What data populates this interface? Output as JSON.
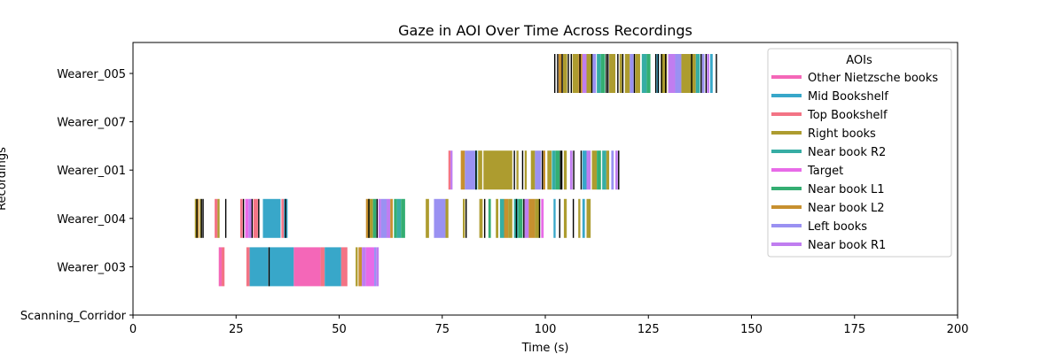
{
  "chart_data": {
    "type": "broken_barh",
    "title": "Gaze in AOI Over Time Across Recordings",
    "xlabel": "Time (s)",
    "ylabel": "Recordings",
    "xlim": [
      0,
      200
    ],
    "xticks": [
      0,
      25,
      50,
      75,
      100,
      125,
      150,
      175,
      200
    ],
    "recordings": [
      "Scanning_Corridor",
      "Wearer_003",
      "Wearer_004",
      "Wearer_001",
      "Wearer_007",
      "Wearer_005"
    ],
    "legend": {
      "title": "AOIs",
      "placement": "top-right",
      "items": [
        {
          "name": "Other Nietzsche books",
          "color": "#f467b8"
        },
        {
          "name": "Mid Bookshelf",
          "color": "#38a7c9"
        },
        {
          "name": "Top Bookshelf",
          "color": "#f37485"
        },
        {
          "name": "Right books",
          "color": "#ad9c2f"
        },
        {
          "name": "Near book R2",
          "color": "#36ada4"
        },
        {
          "name": "Target",
          "color": "#e86be8"
        },
        {
          "name": "Near book L1",
          "color": "#34ae72"
        },
        {
          "name": "Near book L2",
          "color": "#c7902f"
        },
        {
          "name": "Left books",
          "color": "#9a91f2"
        },
        {
          "name": "Near book R1",
          "color": "#c07df0"
        }
      ]
    },
    "series": [
      {
        "recording": "Wearer_003",
        "segments": [
          {
            "start": 20.8,
            "end": 21.5,
            "aoi": "Other Nietzsche books"
          },
          {
            "start": 21.5,
            "end": 22.2,
            "aoi": "Top Bookshelf"
          },
          {
            "start": 27.5,
            "end": 28.3,
            "aoi": "Top Bookshelf"
          },
          {
            "start": 28.3,
            "end": 32.8,
            "aoi": "Mid Bookshelf"
          },
          {
            "start": 33.0,
            "end": 39.0,
            "aoi": "Mid Bookshelf"
          },
          {
            "start": 39.0,
            "end": 45.5,
            "aoi": "Other Nietzsche books"
          },
          {
            "start": 45.5,
            "end": 46.5,
            "aoi": "Top Bookshelf"
          },
          {
            "start": 46.5,
            "end": 50.5,
            "aoi": "Mid Bookshelf"
          },
          {
            "start": 50.5,
            "end": 52.0,
            "aoi": "Top Bookshelf"
          },
          {
            "start": 54.0,
            "end": 54.5,
            "aoi": "Right books"
          },
          {
            "start": 54.7,
            "end": 55.5,
            "aoi": "Near book L2"
          },
          {
            "start": 55.5,
            "end": 56.5,
            "aoi": "Near book R1"
          },
          {
            "start": 56.5,
            "end": 58.5,
            "aoi": "Target"
          },
          {
            "start": 58.5,
            "end": 59.0,
            "aoi": "Left books"
          },
          {
            "start": 59.0,
            "end": 59.6,
            "aoi": "Near book R1"
          }
        ]
      },
      {
        "recording": "Wearer_004",
        "segments": [
          {
            "start": 15.0,
            "end": 15.4,
            "aoi": "Right books"
          },
          {
            "start": 15.6,
            "end": 16.0,
            "aoi": "Near book L2"
          },
          {
            "start": 16.2,
            "end": 16.5,
            "aoi": "Right books"
          },
          {
            "start": 19.8,
            "end": 20.5,
            "aoi": "Top Bookshelf"
          },
          {
            "start": 20.5,
            "end": 21.0,
            "aoi": "Right books"
          },
          {
            "start": 26.0,
            "end": 26.6,
            "aoi": "Top Bookshelf"
          },
          {
            "start": 27.2,
            "end": 28.0,
            "aoi": "Target"
          },
          {
            "start": 28.0,
            "end": 28.8,
            "aoi": "Near book R1"
          },
          {
            "start": 29.2,
            "end": 30.3,
            "aoi": "Top Bookshelf"
          },
          {
            "start": 31.5,
            "end": 35.8,
            "aoi": "Mid Bookshelf"
          },
          {
            "start": 36.0,
            "end": 36.6,
            "aoi": "Top Bookshelf"
          },
          {
            "start": 36.6,
            "end": 37.5,
            "aoi": "Mid Bookshelf"
          },
          {
            "start": 56.5,
            "end": 57.0,
            "aoi": "Near book L2"
          },
          {
            "start": 57.0,
            "end": 58.2,
            "aoi": "Right books"
          },
          {
            "start": 58.2,
            "end": 59.0,
            "aoi": "Near book L1"
          },
          {
            "start": 59.5,
            "end": 60.2,
            "aoi": "Near book R1"
          },
          {
            "start": 60.2,
            "end": 61.5,
            "aoi": "Left books"
          },
          {
            "start": 61.5,
            "end": 62.4,
            "aoi": "Near book R1"
          },
          {
            "start": 62.4,
            "end": 63.0,
            "aoi": "Near book L2"
          },
          {
            "start": 63.3,
            "end": 64.0,
            "aoi": "Near book L1"
          },
          {
            "start": 64.0,
            "end": 65.0,
            "aoi": "Near book R2"
          },
          {
            "start": 65.0,
            "end": 66.0,
            "aoi": "Near book L1"
          },
          {
            "start": 71.0,
            "end": 71.8,
            "aoi": "Right books"
          },
          {
            "start": 73.0,
            "end": 75.8,
            "aoi": "Left books"
          },
          {
            "start": 75.8,
            "end": 76.5,
            "aoi": "Right books"
          },
          {
            "start": 80.0,
            "end": 80.5,
            "aoi": "Right books"
          },
          {
            "start": 84.0,
            "end": 84.8,
            "aoi": "Right books"
          },
          {
            "start": 86.2,
            "end": 86.8,
            "aoi": "Near book L1"
          },
          {
            "start": 88.0,
            "end": 88.6,
            "aoi": "Right books"
          },
          {
            "start": 89.0,
            "end": 90.0,
            "aoi": "Near book R2"
          },
          {
            "start": 90.0,
            "end": 91.0,
            "aoi": "Near book L2"
          },
          {
            "start": 91.0,
            "end": 92.0,
            "aoi": "Right books"
          },
          {
            "start": 92.4,
            "end": 93.5,
            "aoi": "Near book R2"
          },
          {
            "start": 93.5,
            "end": 94.5,
            "aoi": "Near book L1"
          },
          {
            "start": 95.0,
            "end": 96.0,
            "aoi": "Near book R1"
          },
          {
            "start": 96.0,
            "end": 97.5,
            "aoi": "Near book L2"
          },
          {
            "start": 97.5,
            "end": 98.5,
            "aoi": "Right books"
          },
          {
            "start": 99.0,
            "end": 99.6,
            "aoi": "Target"
          },
          {
            "start": 102.0,
            "end": 102.5,
            "aoi": "Mid Bookshelf"
          },
          {
            "start": 104.5,
            "end": 105.2,
            "aoi": "Right books"
          },
          {
            "start": 108.0,
            "end": 108.5,
            "aoi": "Right books"
          },
          {
            "start": 109.0,
            "end": 109.6,
            "aoi": "Mid Bookshelf"
          },
          {
            "start": 110.0,
            "end": 111.0,
            "aoi": "Right books"
          }
        ]
      },
      {
        "recording": "Wearer_001",
        "segments": [
          {
            "start": 76.5,
            "end": 77.0,
            "aoi": "Top Bookshelf"
          },
          {
            "start": 77.0,
            "end": 77.5,
            "aoi": "Near book R1"
          },
          {
            "start": 79.5,
            "end": 80.5,
            "aoi": "Near book L2"
          },
          {
            "start": 80.5,
            "end": 83.0,
            "aoi": "Left books"
          },
          {
            "start": 83.0,
            "end": 83.5,
            "aoi": "Near book R2"
          },
          {
            "start": 83.7,
            "end": 84.7,
            "aoi": "Right books"
          },
          {
            "start": 85.0,
            "end": 92.0,
            "aoi": "Right books"
          },
          {
            "start": 93.0,
            "end": 93.5,
            "aoi": "Right books"
          },
          {
            "start": 95.0,
            "end": 95.5,
            "aoi": "Right books"
          },
          {
            "start": 96.5,
            "end": 97.5,
            "aoi": "Right books"
          },
          {
            "start": 97.5,
            "end": 99.0,
            "aoi": "Left books"
          },
          {
            "start": 99.5,
            "end": 100.0,
            "aoi": "Near book L2"
          },
          {
            "start": 100.5,
            "end": 101.5,
            "aoi": "Right books"
          },
          {
            "start": 101.6,
            "end": 102.5,
            "aoi": "Near book R2"
          },
          {
            "start": 102.5,
            "end": 103.5,
            "aoi": "Near book L1"
          },
          {
            "start": 104.5,
            "end": 105.2,
            "aoi": "Right books"
          },
          {
            "start": 106.0,
            "end": 106.6,
            "aoi": "Near book R1"
          },
          {
            "start": 109.0,
            "end": 110.0,
            "aoi": "Mid Bookshelf"
          },
          {
            "start": 110.0,
            "end": 111.0,
            "aoi": "Near book R1"
          },
          {
            "start": 111.3,
            "end": 112.5,
            "aoi": "Right books"
          },
          {
            "start": 112.5,
            "end": 113.5,
            "aoi": "Near book L1"
          },
          {
            "start": 113.8,
            "end": 114.8,
            "aoi": "Near book R2"
          },
          {
            "start": 114.8,
            "end": 115.5,
            "aoi": "Right books"
          },
          {
            "start": 116.0,
            "end": 116.6,
            "aoi": "Left books"
          },
          {
            "start": 117.0,
            "end": 117.6,
            "aoi": "Near book R1"
          }
        ]
      },
      {
        "recording": "Wearer_005",
        "segments": [
          {
            "start": 103.2,
            "end": 104.0,
            "aoi": "Near book L2"
          },
          {
            "start": 104.3,
            "end": 105.3,
            "aoi": "Right books"
          },
          {
            "start": 106.6,
            "end": 108.0,
            "aoi": "Right books"
          },
          {
            "start": 108.0,
            "end": 109.0,
            "aoi": "Near book L2"
          },
          {
            "start": 109.0,
            "end": 110.0,
            "aoi": "Near book R1"
          },
          {
            "start": 110.0,
            "end": 111.2,
            "aoi": "Right books"
          },
          {
            "start": 111.5,
            "end": 112.3,
            "aoi": "Left books"
          },
          {
            "start": 112.5,
            "end": 113.5,
            "aoi": "Near book R2"
          },
          {
            "start": 113.5,
            "end": 114.5,
            "aoi": "Near book L1"
          },
          {
            "start": 115.5,
            "end": 117.0,
            "aoi": "Right books"
          },
          {
            "start": 118.0,
            "end": 118.6,
            "aoi": "Right books"
          },
          {
            "start": 119.3,
            "end": 120.5,
            "aoi": "Right books"
          },
          {
            "start": 120.5,
            "end": 121.4,
            "aoi": "Left books"
          },
          {
            "start": 121.8,
            "end": 123.0,
            "aoi": "Right books"
          },
          {
            "start": 123.4,
            "end": 124.6,
            "aoi": "Near book R2"
          },
          {
            "start": 124.6,
            "end": 125.5,
            "aoi": "Near book L1"
          },
          {
            "start": 127.0,
            "end": 127.6,
            "aoi": "Mid Bookshelf"
          },
          {
            "start": 128.0,
            "end": 129.5,
            "aoi": "Right books"
          },
          {
            "start": 129.8,
            "end": 131.5,
            "aoi": "Near book R1"
          },
          {
            "start": 131.5,
            "end": 133.0,
            "aoi": "Left books"
          },
          {
            "start": 133.0,
            "end": 136.5,
            "aoi": "Right books"
          },
          {
            "start": 136.5,
            "end": 137.5,
            "aoi": "Near book R2"
          },
          {
            "start": 138.0,
            "end": 138.6,
            "aoi": "Left books"
          },
          {
            "start": 139.2,
            "end": 139.8,
            "aoi": "Near book R1"
          },
          {
            "start": 140.0,
            "end": 140.6,
            "aoi": "Mid Bookshelf"
          }
        ]
      }
    ],
    "black_markers": [
      {
        "recording": "Wearer_003",
        "times": [
          33.0
        ]
      },
      {
        "recording": "Wearer_004",
        "times": [
          15.5,
          16.6,
          17.0,
          22.5,
          26.8,
          28.9,
          30.5,
          37.0,
          57.2,
          59.2,
          80.8,
          85.3,
          93.0,
          94.8,
          98.6,
          103.5,
          106.8
        ]
      },
      {
        "recording": "Wearer_001",
        "times": [
          83.2,
          92.5,
          94.5,
          99.3,
          103.7,
          104.0,
          106.9,
          108.7,
          117.8
        ]
      },
      {
        "recording": "Wearer_005",
        "times": [
          102.3,
          103.0,
          104.1,
          105.6,
          106.3,
          108.4,
          111.3,
          114.8,
          115.2,
          117.6,
          118.8,
          121.6,
          126.8,
          127.4,
          128.2,
          129.2,
          135.5,
          137.8,
          139.0,
          141.5
        ]
      }
    ]
  }
}
